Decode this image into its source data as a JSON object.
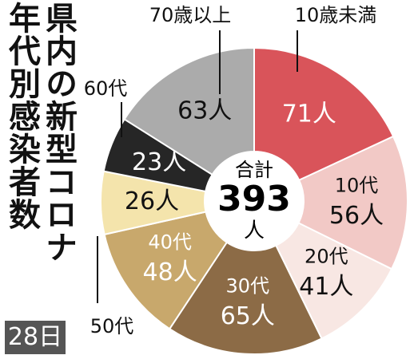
{
  "chart_data": {
    "type": "pie",
    "title": "県内の新型コロナ",
    "subtitle": "年代別感染者数",
    "date": "28日",
    "center_label": "合計",
    "total": 393,
    "total_unit": "人",
    "categories": [
      "10歳未満",
      "10代",
      "20代",
      "30代",
      "40代",
      "50代",
      "60代",
      "70歳以上"
    ],
    "values": [
      71,
      56,
      41,
      65,
      48,
      26,
      23,
      63
    ],
    "value_labels": [
      "71人",
      "56人",
      "41人",
      "65人",
      "48人",
      "26人",
      "23人",
      "63人"
    ],
    "colors": [
      "#d9545a",
      "#f2c9c6",
      "#f8e7e3",
      "#8c6b46",
      "#c8a86c",
      "#f4e4ac",
      "#262626",
      "#ababab"
    ]
  }
}
